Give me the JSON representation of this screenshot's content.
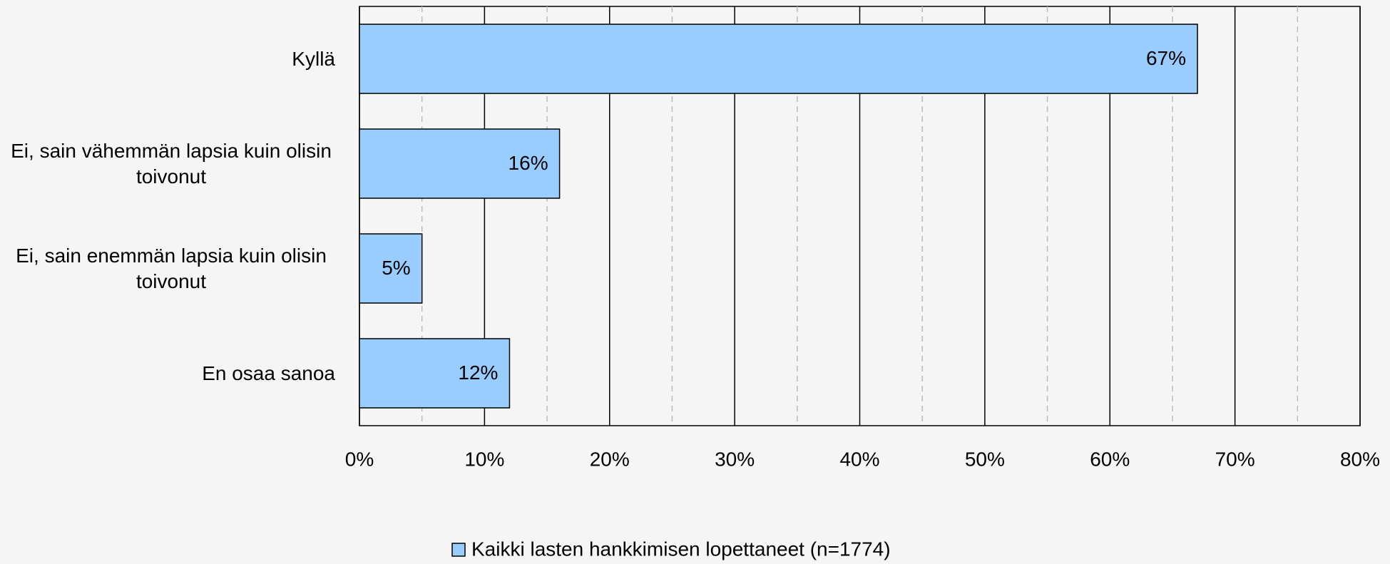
{
  "chart_data": {
    "type": "barh",
    "categories": [
      "Kyllä",
      "Ei, sain vähemmän lapsia kuin olisin toivonut",
      "Ei, sain enemmän lapsia kuin olisin toivonut",
      "En osaa sanoa"
    ],
    "series": [
      {
        "name": "Kaikki lasten hankkimisen lopettaneet (n=1774)",
        "color": "#99ccff",
        "values": [
          67,
          16,
          5,
          12
        ],
        "value_labels": [
          "67%",
          "16%",
          "5%",
          "12%"
        ]
      }
    ],
    "xlim": [
      0,
      80
    ],
    "xticks": [
      {
        "value": 0,
        "label": "0%"
      },
      {
        "value": 10,
        "label": "10%"
      },
      {
        "value": 20,
        "label": "20%"
      },
      {
        "value": 30,
        "label": "30%"
      },
      {
        "value": 40,
        "label": "40%"
      },
      {
        "value": 50,
        "label": "50%"
      },
      {
        "value": 60,
        "label": "60%"
      },
      {
        "value": 70,
        "label": "70%"
      },
      {
        "value": 80,
        "label": "80%"
      }
    ],
    "xticks_minor": [
      5,
      15,
      25,
      35,
      45,
      55,
      65,
      75
    ],
    "grid": true,
    "legend": "bottom"
  }
}
